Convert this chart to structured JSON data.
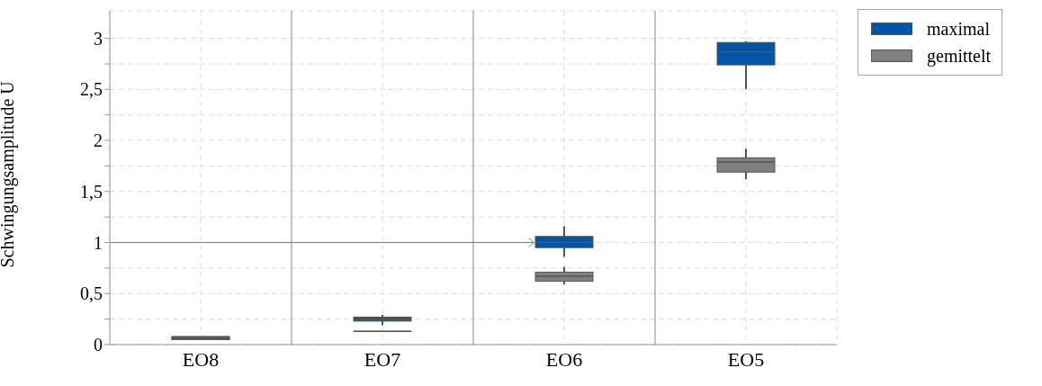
{
  "chart_data": {
    "type": "box",
    "ylabel": "Schwingungsamplitude U",
    "categories": [
      "EO8",
      "EO7",
      "EO6",
      "EO5"
    ],
    "ylim": [
      0,
      3.27
    ],
    "yticks": [
      0,
      {
        "value": 0.25,
        "label": null
      },
      {
        "value": 0.5,
        "label": "0,5"
      },
      {
        "value": 0.75,
        "label": null
      },
      1,
      {
        "value": 1.25,
        "label": null
      },
      {
        "value": 1.5,
        "label": "1,5"
      },
      {
        "value": 1.75,
        "label": null
      },
      2,
      {
        "value": 2.25,
        "label": null
      },
      {
        "value": 2.5,
        "label": "2,5"
      },
      {
        "value": 2.75,
        "label": null
      },
      3
    ],
    "grid": true,
    "legend": "top right",
    "ref_lines": [
      {
        "axis": "y",
        "value": 1,
        "color": "#777777"
      }
    ],
    "series": [
      {
        "name": "maximal",
        "color": "#0055a8",
        "boxes": [
          {
            "low": 0.05,
            "q1": 0.05,
            "median": 0.07,
            "q3": 0.08,
            "high": 0.08
          },
          {
            "low": 0.19,
            "q1": 0.23,
            "median": 0.25,
            "q3": 0.27,
            "high": 0.29
          },
          {
            "low": 0.86,
            "q1": 0.95,
            "median": 1.0,
            "q3": 1.06,
            "high": 1.16
          },
          {
            "low": 2.5,
            "q1": 2.74,
            "median": 2.87,
            "q3": 2.96,
            "high": 2.97
          }
        ]
      },
      {
        "name": "gemittelt",
        "color": "#808080",
        "boxes": [
          {
            "low": 0.05,
            "q1": 0.05,
            "median": 0.06,
            "q3": 0.07,
            "high": 0.07
          },
          {
            "low": 0.13,
            "q1": 0.13,
            "median": 0.13,
            "q3": 0.13,
            "high": 0.13
          },
          {
            "low": 0.59,
            "q1": 0.62,
            "median": 0.67,
            "q3": 0.71,
            "high": 0.76
          },
          {
            "low": 1.62,
            "q1": 1.69,
            "median": 1.79,
            "q3": 1.83,
            "high": 1.92
          }
        ]
      }
    ]
  }
}
